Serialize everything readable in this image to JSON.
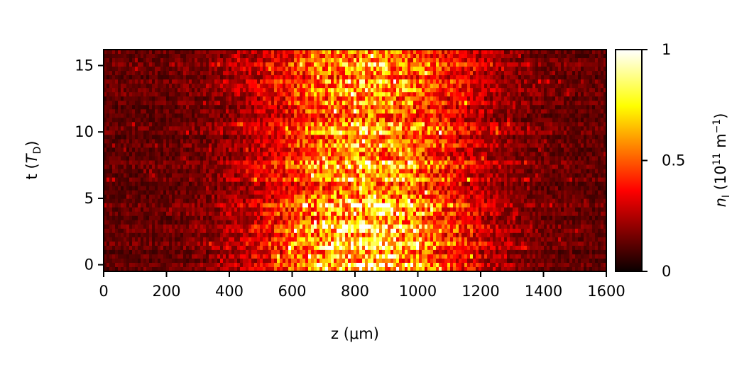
{
  "chart_data": {
    "type": "heatmap",
    "title": "",
    "xlabel": "z (μm)",
    "ylabel_main": "t (",
    "ylabel_sym": "T",
    "ylabel_sub": "D",
    "ylabel_close": ")",
    "xlim": [
      0,
      1600
    ],
    "ylim": [
      -0.5,
      16.2
    ],
    "x_ticks": [
      0,
      200,
      400,
      600,
      800,
      1000,
      1200,
      1400,
      1600
    ],
    "x_tick_labels": [
      "0",
      "200",
      "400",
      "600",
      "800",
      "1000",
      "1200",
      "1400",
      "1600"
    ],
    "y_ticks": [
      0,
      5,
      10,
      15
    ],
    "y_tick_labels": [
      "0",
      "5",
      "10",
      "15"
    ],
    "colorbar": {
      "label_sym": "n",
      "label_sub": "I",
      "label_open": " (10",
      "label_exp": "11",
      "label_unit": " m",
      "label_unit_exp": "−1",
      "label_close": ")",
      "range": [
        0,
        1
      ],
      "ticks": [
        0,
        0.5,
        1
      ],
      "tick_labels": [
        "0",
        "0.5",
        "1"
      ],
      "colormap": "hot"
    },
    "intensity_profile": {
      "description_free": true,
      "z_center": 840,
      "z_width": 330,
      "peak_value": 0.75,
      "edge_value": 0.12,
      "t_decay": 12
    }
  }
}
